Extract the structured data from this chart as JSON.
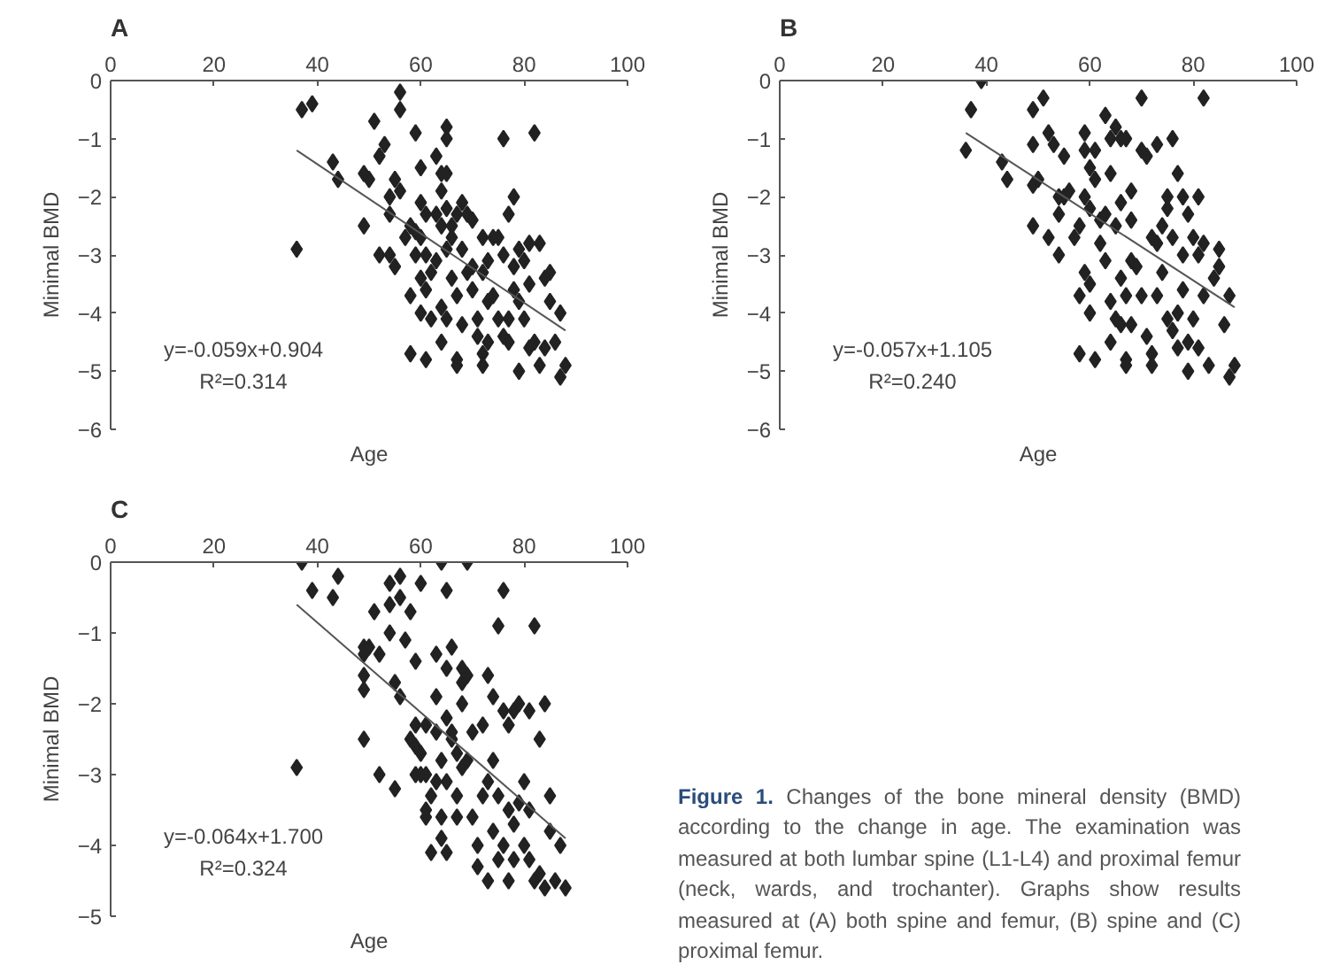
{
  "chart_data": [
    {
      "type": "scatter",
      "title": "A",
      "xlabel": "Age",
      "ylabel": "Minimal BMD",
      "xlim": [
        0,
        100
      ],
      "ylim": [
        -6,
        0
      ],
      "xticks": [
        0,
        20,
        40,
        60,
        80,
        100
      ],
      "yticks": [
        0,
        -1,
        -2,
        -3,
        -4,
        -5,
        -6
      ],
      "marker": "diamond",
      "annotations": [
        "y=-0.059x+0.904",
        "R²=0.314"
      ],
      "series": [
        {
          "type": "scatter",
          "color": "#222222",
          "x": [
            37,
            39,
            36,
            43,
            44,
            49,
            49,
            50,
            51,
            52,
            53,
            52,
            54,
            54,
            55,
            55,
            56,
            56,
            56,
            54,
            57,
            58,
            58,
            58,
            59,
            59,
            59,
            60,
            60,
            60,
            60,
            60,
            61,
            61,
            61,
            61,
            62,
            62,
            63,
            63,
            63,
            64,
            64,
            64,
            64,
            65,
            65,
            64,
            65,
            65,
            65,
            65,
            66,
            66,
            66,
            67,
            67,
            67,
            67,
            68,
            68,
            68,
            69,
            69,
            70,
            70,
            70,
            71,
            71,
            72,
            72,
            72,
            72,
            73,
            73,
            73,
            74,
            74,
            75,
            75,
            76,
            76,
            76,
            77,
            77,
            77,
            78,
            78,
            78,
            79,
            79,
            79,
            80,
            80,
            81,
            81,
            81,
            82,
            82,
            83,
            83,
            84,
            84,
            85,
            85,
            86,
            87,
            87,
            88
          ],
          "values": [
            -0.5,
            -0.4,
            -2.9,
            -1.4,
            -1.7,
            -2.5,
            -1.6,
            -1.7,
            -0.7,
            -1.3,
            -1.1,
            -3.0,
            -2.0,
            -3.0,
            -1.7,
            -3.2,
            -0.2,
            -0.5,
            -1.9,
            -2.3,
            -2.7,
            -2.5,
            -3.7,
            -4.7,
            -0.9,
            -2.6,
            -3.0,
            -1.5,
            -2.1,
            -2.7,
            -3.4,
            -4.0,
            -2.3,
            -3.0,
            -3.6,
            -4.8,
            -3.3,
            -4.1,
            -1.3,
            -2.3,
            -3.1,
            -1.9,
            -2.5,
            -3.9,
            -4.5,
            -0.8,
            -1.0,
            -1.6,
            -1.6,
            -2.2,
            -2.9,
            -4.1,
            -2.5,
            -3.4,
            -2.7,
            -4.8,
            -4.9,
            -3.7,
            -2.3,
            -2.1,
            -2.9,
            -4.2,
            -2.3,
            -3.3,
            -2.4,
            -3.6,
            -3.2,
            -4.1,
            -4.4,
            -4.7,
            -4.9,
            -2.7,
            -3.3,
            -3.1,
            -3.8,
            -4.5,
            -2.7,
            -3.7,
            -4.1,
            -2.7,
            -1.0,
            -3.0,
            -4.4,
            -2.3,
            -4.1,
            -4.5,
            -2.0,
            -3.6,
            -3.2,
            -2.9,
            -5.0,
            -3.8,
            -4.1,
            -3.1,
            -2.8,
            -3.5,
            -4.6,
            -0.9,
            -4.5,
            -2.8,
            -4.9,
            -4.6,
            -3.4,
            -3.3,
            -3.8,
            -4.5,
            -4.0,
            -5.1,
            -4.9
          ]
        },
        {
          "type": "line",
          "color": "#555555",
          "marker": "none",
          "line_style": "solid",
          "x": [
            36,
            88
          ],
          "values": [
            -1.2,
            -4.3
          ]
        }
      ]
    },
    {
      "type": "scatter",
      "title": "B",
      "xlabel": "Age",
      "ylabel": "Minimal BMD",
      "xlim": [
        0,
        100
      ],
      "ylim": [
        -6,
        0
      ],
      "xticks": [
        0,
        20,
        40,
        60,
        80,
        100
      ],
      "yticks": [
        0,
        -1,
        -2,
        -3,
        -4,
        -5,
        -6
      ],
      "marker": "diamond",
      "annotations": [
        "y=-0.057x+1.105",
        "R²=0.240"
      ],
      "series": [
        {
          "type": "scatter",
          "color": "#222222",
          "x": [
            36,
            37,
            39,
            43,
            44,
            49,
            49,
            49,
            49,
            50,
            51,
            52,
            52,
            53,
            54,
            54,
            54,
            55,
            55,
            56,
            57,
            58,
            58,
            58,
            59,
            59,
            59,
            59,
            60,
            60,
            60,
            60,
            61,
            61,
            61,
            62,
            62,
            63,
            63,
            63,
            64,
            64,
            64,
            64,
            65,
            65,
            65,
            66,
            66,
            66,
            66,
            67,
            67,
            67,
            67,
            68,
            68,
            68,
            68,
            69,
            70,
            70,
            70,
            71,
            71,
            72,
            72,
            72,
            73,
            73,
            73,
            74,
            74,
            75,
            75,
            75,
            76,
            76,
            76,
            77,
            77,
            77,
            78,
            78,
            78,
            79,
            79,
            79,
            80,
            80,
            81,
            81,
            81,
            82,
            82,
            82,
            83,
            84,
            85,
            85,
            86,
            87,
            87,
            88
          ],
          "values": [
            -1.2,
            -0.5,
            0,
            -1.4,
            -1.7,
            -0.5,
            -1.1,
            -2.5,
            -1.8,
            -1.7,
            -0.3,
            -2.7,
            -0.9,
            -1.1,
            -2.0,
            -2.3,
            -3.0,
            -1.3,
            -2.0,
            -1.9,
            -2.7,
            -4.7,
            -3.7,
            -2.5,
            -0.9,
            -1.2,
            -2.0,
            -3.3,
            -1.5,
            -2.2,
            -3.5,
            -4.0,
            -1.2,
            -1.7,
            -4.8,
            -2.4,
            -2.8,
            -0.6,
            -2.3,
            -3.1,
            -1.0,
            -1.6,
            -3.8,
            -4.5,
            -0.8,
            -2.5,
            -4.1,
            -1.0,
            -2.1,
            -3.4,
            -4.2,
            -1.0,
            -4.8,
            -4.9,
            -3.7,
            -1.9,
            -2.4,
            -3.1,
            -4.2,
            -3.2,
            -0.3,
            -1.2,
            -3.7,
            -1.3,
            -4.4,
            -2.7,
            -4.7,
            -4.9,
            -2.8,
            -3.7,
            -1.1,
            -2.5,
            -3.3,
            -2.0,
            -2.2,
            -4.1,
            -1.0,
            -2.7,
            -4.3,
            -1.6,
            -4.0,
            -4.6,
            -2.0,
            -3.0,
            -3.6,
            -2.3,
            -4.5,
            -5.0,
            -4.1,
            -2.7,
            -2.0,
            -3.0,
            -4.6,
            -0.3,
            -2.8,
            -3.7,
            -4.9,
            -3.4,
            -2.9,
            -3.2,
            -4.2,
            -3.7,
            -5.1,
            -4.9
          ]
        },
        {
          "type": "line",
          "color": "#555555",
          "marker": "none",
          "line_style": "solid",
          "x": [
            36,
            88
          ],
          "values": [
            -0.9,
            -3.9
          ]
        }
      ]
    },
    {
      "type": "scatter",
      "title": "C",
      "xlabel": "Age",
      "ylabel": "Minimal BMD",
      "xlim": [
        0,
        100
      ],
      "ylim": [
        -5,
        0
      ],
      "xticks": [
        0,
        20,
        40,
        60,
        80,
        100
      ],
      "yticks": [
        0,
        -1,
        -2,
        -3,
        -4,
        -5
      ],
      "marker": "diamond",
      "annotations": [
        "y=-0.064x+1.700",
        "R²=0.324"
      ],
      "series": [
        {
          "type": "scatter",
          "color": "#222222",
          "x": [
            36,
            37,
            39,
            43,
            44,
            49,
            49,
            49,
            49,
            49,
            50,
            51,
            52,
            52,
            54,
            54,
            54,
            55,
            55,
            56,
            56,
            56,
            57,
            58,
            58,
            59,
            59,
            59,
            59,
            60,
            60,
            60,
            61,
            61,
            61,
            61,
            62,
            62,
            63,
            63,
            63,
            63,
            64,
            64,
            64,
            64,
            65,
            65,
            65,
            65,
            65,
            66,
            66,
            66,
            67,
            67,
            67,
            68,
            68,
            68,
            68,
            69,
            69,
            69,
            70,
            70,
            71,
            71,
            72,
            72,
            73,
            73,
            73,
            74,
            74,
            74,
            75,
            75,
            75,
            76,
            76,
            76,
            77,
            77,
            77,
            78,
            78,
            78,
            79,
            79,
            80,
            80,
            81,
            81,
            81,
            82,
            82,
            83,
            83,
            84,
            84,
            85,
            85,
            86,
            87,
            88
          ],
          "values": [
            -2.9,
            0,
            -0.4,
            -0.5,
            -0.2,
            -1.2,
            -1.3,
            -1.6,
            -1.8,
            -2.5,
            -1.2,
            -0.7,
            -1.3,
            -3.0,
            -0.3,
            -0.6,
            -1.0,
            -1.7,
            -3.2,
            -0.2,
            -0.5,
            -1.9,
            -1.1,
            -0.7,
            -2.5,
            -1.4,
            -2.3,
            -2.6,
            -3.0,
            -0.3,
            -2.7,
            -3.0,
            -2.3,
            -3.0,
            -3.5,
            -3.6,
            -3.3,
            -4.1,
            -1.3,
            -1.9,
            -2.4,
            -3.1,
            0,
            -2.8,
            -3.6,
            -3.9,
            -0.4,
            -1.5,
            -2.2,
            -3.1,
            -4.1,
            -1.2,
            -2.4,
            -2.5,
            -2.7,
            -3.3,
            -3.6,
            -1.5,
            -1.7,
            -2.0,
            -2.9,
            0,
            -1.6,
            -2.8,
            -2.4,
            -3.6,
            -4.0,
            -4.3,
            -2.3,
            -3.3,
            -1.6,
            -3.1,
            -4.5,
            -1.9,
            -2.8,
            -3.8,
            -0.9,
            -3.3,
            -4.2,
            -0.4,
            -2.1,
            -4.0,
            -2.3,
            -3.5,
            -4.5,
            -2.1,
            -3.7,
            -4.2,
            -2.0,
            -3.4,
            -3.1,
            -4.0,
            -3.5,
            -4.2,
            -2.1,
            -0.9,
            -4.5,
            -2.5,
            -4.4,
            -2.0,
            -4.6,
            -3.3,
            -3.8,
            -4.5,
            -4.0,
            -4.6
          ]
        },
        {
          "type": "line",
          "color": "#555555",
          "marker": "none",
          "line_style": "solid",
          "x": [
            36,
            88
          ],
          "values": [
            -0.6,
            -3.9
          ]
        }
      ]
    },
    {
      "type": "other",
      "annotations": [
        "Figure 1.",
        "Changes of the bone mineral density (BMD) according to the change in age. The examination was measured at both lumbar spine (L1-L4) and proximal femur (neck, wards, and trochanter). Graphs show results measured at (A) both spine and femur, (B) spine and (C) proximal femur."
      ]
    }
  ]
}
